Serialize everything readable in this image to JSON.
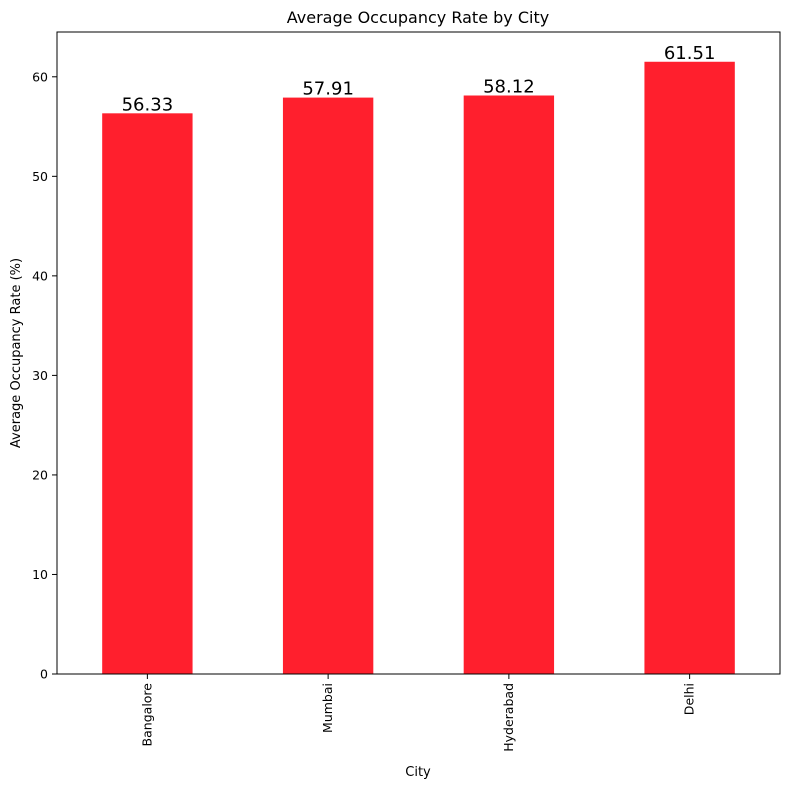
{
  "chart_data": {
    "type": "bar",
    "title": "Average Occupancy Rate by City",
    "xlabel": "City",
    "ylabel": "Average Occupancy Rate (%)",
    "categories": [
      "Bangalore",
      "Mumbai",
      "Hyderabad",
      "Delhi"
    ],
    "values": [
      56.33,
      57.91,
      58.12,
      61.51
    ],
    "data_labels": [
      "56.33",
      "57.91",
      "58.12",
      "61.51"
    ],
    "yticks": [
      0,
      10,
      20,
      30,
      40,
      50,
      60
    ],
    "ylim": [
      0,
      64.5
    ],
    "bar_color": "#ff1f2d",
    "grid": false,
    "legend": "none"
  }
}
